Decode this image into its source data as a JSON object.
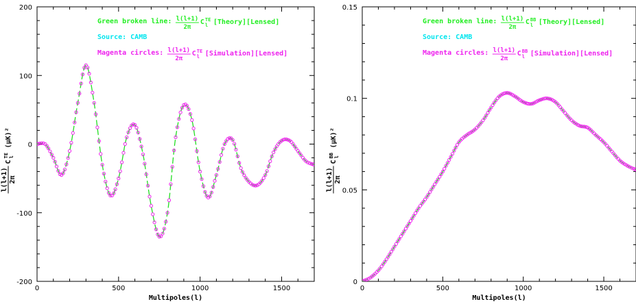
{
  "chart_data": [
    {
      "type": "line",
      "panel": "left",
      "xlabel": "Multipoles(l)",
      "ylabel_prefix": "l(l+1)",
      "ylabel_denom": "2π",
      "ylabel_c": "C",
      "ylabel_sup": "TE",
      "ylabel_sub": "l",
      "ylabel_unit": "(μK)²",
      "xlim": [
        0,
        1700
      ],
      "ylim": [
        -200,
        200
      ],
      "xticks": [
        0,
        500,
        1000,
        1500
      ],
      "yticks": [
        -200,
        -100,
        0,
        100,
        200
      ],
      "grid": false,
      "annotations": [
        {
          "lead": "Green broken line:",
          "tail": "[Theory][Lensed]",
          "sup": "TE",
          "color": "#22ee22"
        },
        {
          "lead": "Source: CAMB",
          "tail": "",
          "sup": "",
          "color": "#00e5ee"
        },
        {
          "lead": "Magenta circles:",
          "tail": "[Simulation][Lensed]",
          "sup": "TE",
          "color": "#ee22ee"
        }
      ],
      "series": [
        {
          "name": "Theory",
          "style": "dashed",
          "color": "#22dd22",
          "x": [
            0,
            50,
            100,
            150,
            200,
            250,
            300,
            350,
            400,
            450,
            500,
            550,
            600,
            650,
            700,
            750,
            800,
            850,
            900,
            950,
            1000,
            1050,
            1100,
            1150,
            1200,
            1250,
            1300,
            1350,
            1400,
            1450,
            1500,
            1550,
            1600,
            1650,
            1700
          ],
          "y": [
            0,
            0,
            -20,
            -45,
            -10,
            60,
            115,
            60,
            -30,
            -75,
            -50,
            10,
            28,
            -15,
            -90,
            -135,
            -100,
            10,
            57,
            35,
            -40,
            -78,
            -45,
            0,
            6,
            -35,
            -55,
            -60,
            -45,
            -12,
            5,
            5,
            -10,
            -25,
            -30
          ]
        },
        {
          "name": "Simulation",
          "style": "circles",
          "color": "#ee22ee",
          "x": [
            0,
            50,
            100,
            150,
            200,
            250,
            300,
            350,
            400,
            450,
            500,
            550,
            600,
            650,
            700,
            750,
            800,
            850,
            900,
            950,
            1000,
            1050,
            1100,
            1150,
            1200,
            1250,
            1300,
            1350,
            1400,
            1450,
            1500,
            1550,
            1600,
            1650,
            1700
          ],
          "y": [
            0,
            0,
            -20,
            -45,
            -10,
            60,
            115,
            60,
            -30,
            -75,
            -50,
            10,
            28,
            -15,
            -90,
            -135,
            -100,
            10,
            57,
            35,
            -40,
            -78,
            -45,
            0,
            6,
            -35,
            -55,
            -60,
            -45,
            -12,
            5,
            5,
            -10,
            -25,
            -30
          ]
        }
      ]
    },
    {
      "type": "line",
      "panel": "right",
      "xlabel": "Multipoles(l)",
      "ylabel_prefix": "l(l+1)",
      "ylabel_denom": "2π",
      "ylabel_c": "C",
      "ylabel_sup": "BB",
      "ylabel_sub": "l",
      "ylabel_unit": "(μK)²",
      "xlim": [
        0,
        1700
      ],
      "ylim": [
        0,
        0.15
      ],
      "xticks": [
        0,
        500,
        1000,
        1500
      ],
      "yticks": [
        0,
        0.05,
        0.1,
        0.15
      ],
      "grid": false,
      "annotations": [
        {
          "lead": "Green broken line:",
          "tail": "[Theory][Lensed]",
          "sup": "BB",
          "color": "#22ee22"
        },
        {
          "lead": "Source: CAMB",
          "tail": "",
          "sup": "",
          "color": "#00e5ee"
        },
        {
          "lead": "Magenta circles:",
          "tail": "[Simulation][Lensed]",
          "sup": "BB",
          "color": "#ee22ee"
        }
      ],
      "series": [
        {
          "name": "Theory",
          "style": "dashed",
          "color": "#22dd22",
          "x": [
            0,
            50,
            100,
            150,
            200,
            250,
            300,
            350,
            400,
            450,
            500,
            550,
            600,
            650,
            700,
            750,
            800,
            850,
            900,
            950,
            1000,
            1050,
            1100,
            1150,
            1200,
            1250,
            1300,
            1350,
            1400,
            1450,
            1500,
            1550,
            1600,
            1650,
            1700
          ],
          "y": [
            0,
            0.002,
            0.006,
            0.012,
            0.019,
            0.026,
            0.033,
            0.04,
            0.046,
            0.053,
            0.06,
            0.068,
            0.076,
            0.08,
            0.083,
            0.088,
            0.095,
            0.101,
            0.103,
            0.101,
            0.098,
            0.097,
            0.099,
            0.1,
            0.098,
            0.093,
            0.088,
            0.085,
            0.084,
            0.08,
            0.076,
            0.071,
            0.066,
            0.063,
            0.061
          ]
        },
        {
          "name": "Simulation",
          "style": "circles",
          "color": "#ee22ee",
          "x": [
            0,
            50,
            100,
            150,
            200,
            250,
            300,
            350,
            400,
            450,
            500,
            550,
            600,
            650,
            700,
            750,
            800,
            850,
            900,
            950,
            1000,
            1050,
            1100,
            1150,
            1200,
            1250,
            1300,
            1350,
            1400,
            1450,
            1500,
            1550,
            1600,
            1650,
            1700
          ],
          "y": [
            0,
            0.002,
            0.006,
            0.012,
            0.019,
            0.026,
            0.033,
            0.04,
            0.046,
            0.053,
            0.06,
            0.068,
            0.076,
            0.08,
            0.083,
            0.088,
            0.095,
            0.101,
            0.103,
            0.101,
            0.098,
            0.097,
            0.099,
            0.1,
            0.098,
            0.093,
            0.088,
            0.085,
            0.084,
            0.08,
            0.076,
            0.071,
            0.066,
            0.063,
            0.061
          ]
        }
      ]
    }
  ]
}
